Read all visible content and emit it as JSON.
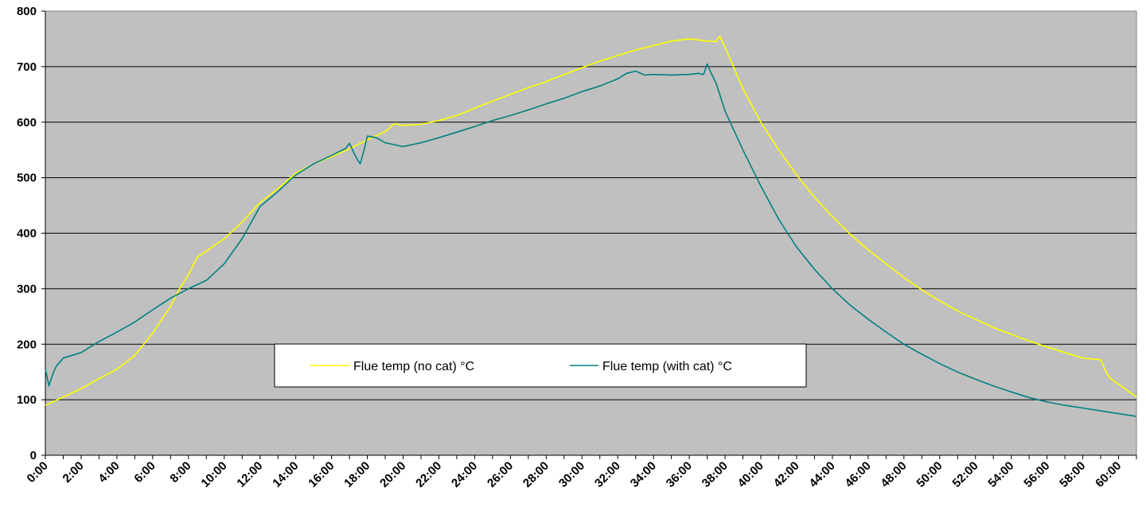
{
  "chart_data": {
    "type": "line",
    "title": "",
    "xlabel": "",
    "ylabel": "",
    "xlim": [
      0,
      61
    ],
    "ylim": [
      0,
      800
    ],
    "y_ticks": [
      0,
      100,
      200,
      300,
      400,
      500,
      600,
      700,
      800
    ],
    "x_tick_labels": [
      "0:00",
      "2:00",
      "4:00",
      "6:00",
      "8:00",
      "10:00",
      "12:00",
      "14:00",
      "16:00",
      "18:00",
      "20:00",
      "22:00",
      "24:00",
      "26:00",
      "28:00",
      "30:00",
      "32:00",
      "34:00",
      "36:00",
      "38:00",
      "40:00",
      "42:00",
      "44:00",
      "46:00",
      "48:00",
      "50:00",
      "52:00",
      "54:00",
      "56:00",
      "58:00",
      "60:00"
    ],
    "x_tick_values": [
      0,
      2,
      4,
      6,
      8,
      10,
      12,
      14,
      16,
      18,
      20,
      22,
      24,
      26,
      28,
      30,
      32,
      34,
      36,
      38,
      40,
      42,
      44,
      46,
      48,
      50,
      52,
      54,
      56,
      58,
      60
    ],
    "grid": "horizontal",
    "legend_position": "center-bottom",
    "plot_background": "#c0c0c0",
    "series": [
      {
        "name": "Flue temp (no cat) °C",
        "color": "#ffff00",
        "x": [
          0,
          1,
          2,
          3,
          4,
          5,
          6,
          7,
          7.5,
          8,
          8.5,
          9,
          10,
          11,
          12,
          13,
          14,
          15,
          16,
          17,
          18,
          19,
          19.5,
          20,
          21,
          22,
          23,
          24,
          25,
          26,
          27,
          28,
          29,
          30,
          31,
          32,
          33,
          34,
          35,
          36,
          37,
          37.5,
          37.7,
          38,
          39,
          40,
          41,
          42,
          43,
          44,
          45,
          46,
          47,
          48,
          49,
          50,
          51,
          52,
          53,
          54,
          55,
          56,
          57,
          58,
          59,
          59.3,
          59.5,
          60,
          61
        ],
        "y": [
          90,
          105,
          120,
          138,
          155,
          180,
          220,
          268,
          300,
          325,
          357,
          368,
          390,
          420,
          455,
          480,
          508,
          525,
          538,
          552,
          568,
          583,
          597,
          594,
          596,
          603,
          612,
          625,
          638,
          650,
          662,
          673,
          686,
          698,
          710,
          720,
          730,
          738,
          746,
          750,
          746,
          745,
          755,
          735,
          660,
          600,
          550,
          505,
          465,
          430,
          398,
          370,
          345,
          320,
          298,
          278,
          260,
          245,
          230,
          218,
          206,
          195,
          185,
          175,
          172,
          150,
          140,
          128,
          105
        ]
      },
      {
        "name": "Flue temp (with cat) °C",
        "color": "#008080",
        "x": [
          0,
          0.2,
          0.4,
          0.6,
          1,
          2,
          3,
          4,
          5,
          6,
          7,
          8,
          9,
          10,
          11,
          12,
          13,
          14,
          15,
          16,
          16.8,
          17,
          17.2,
          17.4,
          17.6,
          17.8,
          18,
          18.5,
          19,
          20,
          21,
          22,
          23,
          24,
          25,
          26,
          27,
          28,
          29,
          30,
          31,
          32,
          32.5,
          33,
          33.5,
          34,
          35,
          36,
          36.5,
          36.8,
          37,
          37.2,
          37.5,
          38,
          39,
          40,
          41,
          42,
          43,
          44,
          45,
          46,
          47,
          48,
          49,
          50,
          51,
          52,
          53,
          54,
          55,
          56,
          57,
          58,
          59,
          60,
          61
        ],
        "y": [
          155,
          125,
          145,
          160,
          175,
          185,
          205,
          222,
          240,
          262,
          283,
          300,
          315,
          345,
          390,
          448,
          475,
          505,
          525,
          540,
          553,
          562,
          548,
          535,
          525,
          548,
          575,
          572,
          563,
          556,
          563,
          572,
          582,
          592,
          603,
          612,
          622,
          633,
          643,
          655,
          665,
          678,
          688,
          692,
          685,
          686,
          685,
          686,
          688,
          686,
          705,
          690,
          670,
          620,
          550,
          485,
          425,
          375,
          335,
          300,
          270,
          245,
          222,
          200,
          182,
          165,
          150,
          137,
          125,
          114,
          104,
          96,
          90,
          85,
          80,
          75,
          70
        ]
      }
    ]
  }
}
